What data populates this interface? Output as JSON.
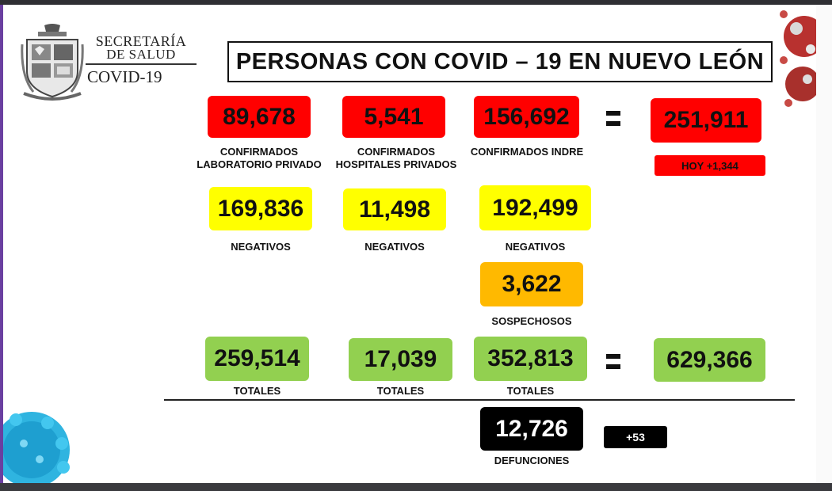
{
  "header": {
    "org_line1": "SECRETARÍA",
    "org_line2": "DE SALUD",
    "org_line3": "COVID-19",
    "title": "PERSONAS CON COVID – 19 EN NUEVO LEÓN"
  },
  "confirmed": {
    "private_lab": {
      "value": "89,678",
      "label_line1": "CONFIRMADOS",
      "label_line2": "LABORATORIO PRIVADO"
    },
    "private_hospitals": {
      "value": "5,541",
      "label_line1": "CONFIRMADOS",
      "label_line2": "HOSPITALES PRIVADOS"
    },
    "indre": {
      "value": "156,692",
      "label": "CONFIRMADOS INDRE"
    },
    "total": {
      "value": "251,911",
      "today": "HOY +1,344"
    }
  },
  "negatives": {
    "private_lab": {
      "value": "169,836",
      "label": "NEGATIVOS"
    },
    "private_hospitals": {
      "value": "11,498",
      "label": "NEGATIVOS"
    },
    "indre": {
      "value": "192,499",
      "label": "NEGATIVOS"
    }
  },
  "suspects": {
    "value": "3,622",
    "label": "SOSPECHOSOS"
  },
  "totals": {
    "private_lab": {
      "value": "259,514",
      "label": "TOTALES"
    },
    "private_hospitals": {
      "value": "17,039",
      "label": "TOTALES"
    },
    "indre": {
      "value": "352,813",
      "label": "TOTALES"
    },
    "grand_total": {
      "value": "629,366"
    }
  },
  "deaths": {
    "value": "12,726",
    "label": "DEFUNCIONES",
    "today": "+53"
  },
  "colors": {
    "confirmed": "#ff0000",
    "negative": "#ffff00",
    "suspect": "#ffb900",
    "total": "#92d050",
    "deaths": "#000000",
    "accent_border": "#6a3fa0"
  },
  "icons": [
    "state-crest-icon",
    "equals-icon",
    "virus-icon"
  ]
}
